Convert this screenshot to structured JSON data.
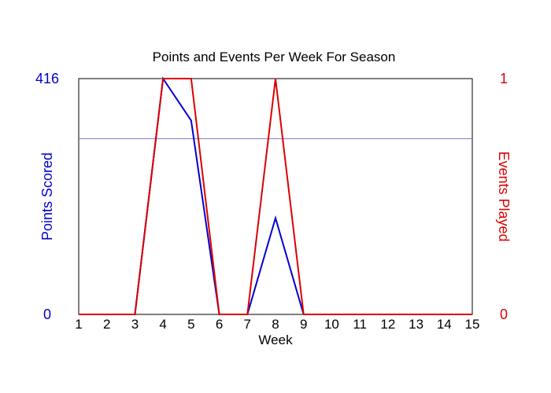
{
  "chart_data": {
    "type": "line",
    "title": "Points and Events Per Week For Season",
    "xlabel": "Week",
    "ylabel_left": "Points Scored",
    "ylabel_right": "Events Played",
    "x": [
      1,
      2,
      3,
      4,
      5,
      6,
      7,
      8,
      9,
      10,
      11,
      12,
      13,
      14,
      15
    ],
    "xlim": [
      1,
      15
    ],
    "ylim_left": [
      0,
      416
    ],
    "ylim_right": [
      0,
      1
    ],
    "y_left_ticks": [
      "0",
      "416"
    ],
    "y_right_ticks": [
      "0",
      "1"
    ],
    "reference_line_left": 310,
    "series": [
      {
        "axis": "left",
        "color": "#0000cc",
        "values": [
          0,
          0,
          0,
          416,
          342,
          0,
          0,
          170,
          0,
          0,
          0,
          0,
          0,
          0,
          0
        ]
      },
      {
        "axis": "right",
        "color": "#dd0000",
        "values": [
          0,
          0,
          0,
          1,
          1,
          0,
          0,
          1,
          0,
          0,
          0,
          0,
          0,
          0,
          0
        ]
      }
    ],
    "colors": {
      "left_axis": "#0000cc",
      "right_axis": "#dd0000",
      "reference_line": "#8080c0",
      "frame": "#000000"
    }
  }
}
